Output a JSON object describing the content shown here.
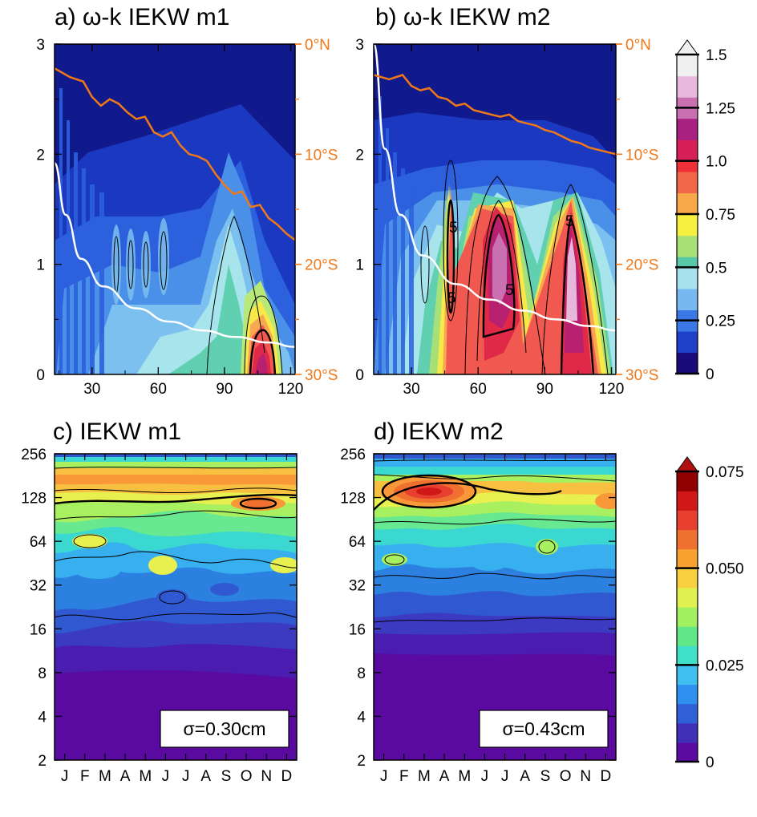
{
  "colors": {
    "orange": "#f07818",
    "white_curve": "#ffffff",
    "text": "#000000"
  },
  "chart_data": [
    {
      "type": "heatmap",
      "panel": "a",
      "title": "a) ω-k IEKW m1",
      "xlim": [
        13,
        122
      ],
      "ylim": [
        0,
        3
      ],
      "xticks": [
        "30",
        "60",
        "90",
        "120"
      ],
      "yticks": [
        "0",
        "1",
        "2",
        "3"
      ],
      "right_ticks": [
        "0°N",
        "10°S",
        "20°S",
        "30°S"
      ],
      "orange_curve_x": [
        13,
        20,
        26,
        30,
        34,
        38,
        42,
        46,
        50,
        54,
        58,
        62,
        66,
        70,
        74,
        78,
        82,
        86,
        90,
        94,
        98,
        102,
        106,
        110,
        114,
        118,
        122
      ],
      "orange_curve_y": [
        2.78,
        2.7,
        2.66,
        2.52,
        2.44,
        2.5,
        2.46,
        2.38,
        2.32,
        2.34,
        2.2,
        2.16,
        2.2,
        2.08,
        2.0,
        1.98,
        1.94,
        1.82,
        1.72,
        1.64,
        1.66,
        1.52,
        1.54,
        1.42,
        1.36,
        1.28,
        1.22
      ],
      "white_curve_x": [
        13,
        18,
        25,
        35,
        50,
        65,
        80,
        95,
        110,
        122
      ],
      "white_curve_y": [
        1.92,
        1.45,
        1.05,
        0.8,
        0.6,
        0.48,
        0.4,
        0.34,
        0.29,
        0.25
      ]
    },
    {
      "type": "heatmap",
      "panel": "b",
      "title": "b) ω-k IEKW m2",
      "xlim": [
        13,
        122
      ],
      "ylim": [
        0,
        3
      ],
      "xticks": [
        "30",
        "60",
        "90",
        "120"
      ],
      "yticks": [
        "0",
        "1",
        "2",
        "3"
      ],
      "right_ticks": [
        "0°N",
        "10°S",
        "20°S",
        "30°S"
      ],
      "contour_labels": [
        "5",
        "5",
        "5",
        "5"
      ],
      "orange_curve_x": [
        13,
        20,
        26,
        30,
        34,
        38,
        42,
        46,
        50,
        54,
        58,
        62,
        66,
        70,
        74,
        78,
        82,
        86,
        90,
        94,
        98,
        102,
        106,
        110,
        114,
        118,
        122
      ],
      "orange_curve_y": [
        2.72,
        2.68,
        2.72,
        2.62,
        2.58,
        2.6,
        2.52,
        2.5,
        2.44,
        2.46,
        2.4,
        2.38,
        2.36,
        2.34,
        2.36,
        2.3,
        2.28,
        2.26,
        2.22,
        2.2,
        2.16,
        2.12,
        2.1,
        2.06,
        2.04,
        2.02,
        2.0
      ],
      "white_curve_x": [
        13,
        18,
        25,
        35,
        50,
        65,
        80,
        95,
        110,
        122
      ],
      "white_curve_y": [
        3.0,
        2.05,
        1.45,
        1.08,
        0.82,
        0.68,
        0.58,
        0.5,
        0.44,
        0.4
      ]
    },
    {
      "type": "heatmap",
      "panel": "c",
      "title": "c)  IEKW m1",
      "months": [
        "J",
        "F",
        "M",
        "A",
        "M",
        "J",
        "J",
        "A",
        "S",
        "O",
        "N",
        "D"
      ],
      "yticks": [
        "2",
        "4",
        "8",
        "16",
        "32",
        "64",
        "128",
        "256"
      ],
      "annotation": "σ=0.30cm"
    },
    {
      "type": "heatmap",
      "panel": "d",
      "title": "d)  IEKW m2",
      "months": [
        "J",
        "F",
        "M",
        "A",
        "M",
        "J",
        "J",
        "A",
        "S",
        "O",
        "N",
        "D"
      ],
      "yticks": [
        "2",
        "4",
        "8",
        "16",
        "32",
        "64",
        "128",
        "256"
      ],
      "annotation": "σ=0.43cm"
    },
    {
      "type": "colorbar",
      "for_panels": [
        "a",
        "b"
      ],
      "range": [
        0,
        1.5
      ],
      "labels": [
        "1.5",
        "1.25",
        "1.0",
        "0.75",
        "0.5",
        "0.25",
        "0"
      ],
      "colors": [
        "#1a0a7a",
        "#1e3fc8",
        "#3a78e8",
        "#78b8f0",
        "#a8e0ee",
        "#58c8a8",
        "#a8e078",
        "#f8f040",
        "#f8a848",
        "#f06848",
        "#f03038",
        "#d82058",
        "#a82080",
        "#c870b0",
        "#e8b8dc",
        "#f0f0f0"
      ]
    },
    {
      "type": "colorbar",
      "for_panels": [
        "c",
        "d"
      ],
      "range": [
        0,
        0.075
      ],
      "labels": [
        "0.075",
        "0.050",
        "0.025",
        "0"
      ],
      "colors": [
        "#5a0aa0",
        "#4030b8",
        "#3060d8",
        "#3090f0",
        "#40c0f0",
        "#40e0c8",
        "#60e888",
        "#a0f060",
        "#e0f050",
        "#f8d040",
        "#f8a030",
        "#f07030",
        "#e84030",
        "#d01818",
        "#900000"
      ]
    }
  ]
}
